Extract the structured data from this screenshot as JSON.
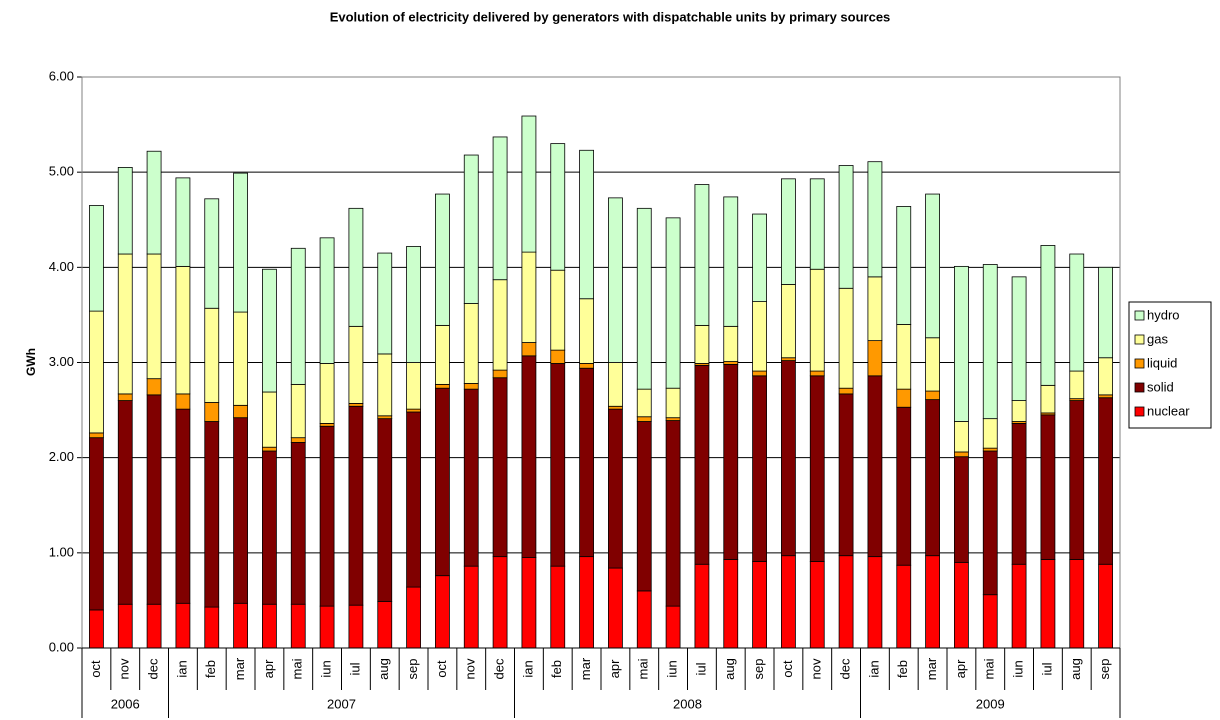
{
  "chart_data": {
    "type": "stacked-bar",
    "title": "Evolution of electricity delivered by generators with dispatchable units by primary sources",
    "y_label": "GWh",
    "categories": [
      "oct",
      "nov",
      "dec",
      "ian",
      "feb",
      "mar",
      "apr",
      "mai",
      "iun",
      "iul",
      "aug",
      "sep",
      "oct",
      "nov",
      "dec",
      "ian",
      "feb",
      "mar",
      "apr",
      "mai",
      "iun",
      "iul",
      "aug",
      "sep",
      "oct",
      "nov",
      "dec",
      "ian",
      "feb",
      "mar",
      "apr",
      "mai",
      "iun",
      "iul",
      "aug",
      "sep"
    ],
    "x_groups": [
      {
        "label": "2006",
        "span": 3
      },
      {
        "label": "2007",
        "span": 12
      },
      {
        "label": "2008",
        "span": 12
      },
      {
        "label": "2009",
        "span": 9
      }
    ],
    "series": [
      {
        "name": "nuclear",
        "color": "#ff0000",
        "values": [
          0.4,
          0.46,
          0.46,
          0.47,
          0.43,
          0.47,
          0.46,
          0.46,
          0.44,
          0.45,
          0.49,
          0.64,
          0.76,
          0.86,
          0.96,
          0.95,
          0.86,
          0.96,
          0.84,
          0.6,
          0.44,
          0.88,
          0.93,
          0.91,
          0.97,
          0.91,
          0.97,
          0.96,
          0.87,
          0.97,
          0.9,
          0.56,
          0.88,
          0.93,
          0.93,
          0.88
        ]
      },
      {
        "name": "solid",
        "color": "#800000",
        "values": [
          1.81,
          2.14,
          2.2,
          2.04,
          1.95,
          1.95,
          1.61,
          1.7,
          1.89,
          2.09,
          1.92,
          1.84,
          1.97,
          1.86,
          1.88,
          2.12,
          2.13,
          1.98,
          1.67,
          1.78,
          1.95,
          2.09,
          2.05,
          1.95,
          2.05,
          1.95,
          1.7,
          1.9,
          1.66,
          1.64,
          1.11,
          1.51,
          1.48,
          1.52,
          1.67,
          1.75
        ]
      },
      {
        "name": "liquid",
        "color": "#ff9900",
        "values": [
          0.05,
          0.07,
          0.17,
          0.16,
          0.2,
          0.13,
          0.04,
          0.05,
          0.03,
          0.03,
          0.03,
          0.03,
          0.04,
          0.06,
          0.08,
          0.14,
          0.14,
          0.05,
          0.03,
          0.05,
          0.03,
          0.02,
          0.03,
          0.05,
          0.03,
          0.05,
          0.06,
          0.37,
          0.19,
          0.09,
          0.05,
          0.03,
          0.02,
          0.02,
          0.02,
          0.03
        ]
      },
      {
        "name": "gas",
        "color": "#ffff99",
        "values": [
          1.28,
          1.47,
          1.31,
          1.34,
          0.99,
          0.98,
          0.58,
          0.56,
          0.63,
          0.81,
          0.65,
          0.49,
          0.62,
          0.84,
          0.95,
          0.95,
          0.84,
          0.68,
          0.46,
          0.29,
          0.31,
          0.4,
          0.37,
          0.73,
          0.77,
          1.07,
          1.05,
          0.67,
          0.68,
          0.56,
          0.32,
          0.31,
          0.22,
          0.29,
          0.29,
          0.39
        ]
      },
      {
        "name": "hydro",
        "color": "#ccffcc",
        "values": [
          1.11,
          0.91,
          1.08,
          0.93,
          1.15,
          1.46,
          1.29,
          1.43,
          1.32,
          1.24,
          1.06,
          1.22,
          1.38,
          1.56,
          1.5,
          1.43,
          1.33,
          1.56,
          1.73,
          1.9,
          1.79,
          1.48,
          1.36,
          0.92,
          1.11,
          0.95,
          1.29,
          1.21,
          1.24,
          1.51,
          1.63,
          1.62,
          1.3,
          1.47,
          1.23,
          0.95
        ]
      }
    ],
    "ylim": [
      0,
      6
    ],
    "yticks": [
      {
        "value": 0,
        "label": "0.00"
      },
      {
        "value": 1,
        "label": "1.00"
      },
      {
        "value": 2,
        "label": "2.00"
      },
      {
        "value": 3,
        "label": "3.00"
      },
      {
        "value": 4,
        "label": "4.00"
      },
      {
        "value": 5,
        "label": "5.00"
      },
      {
        "value": 6,
        "label": "6.00"
      }
    ],
    "grid": true,
    "legend": "right"
  }
}
